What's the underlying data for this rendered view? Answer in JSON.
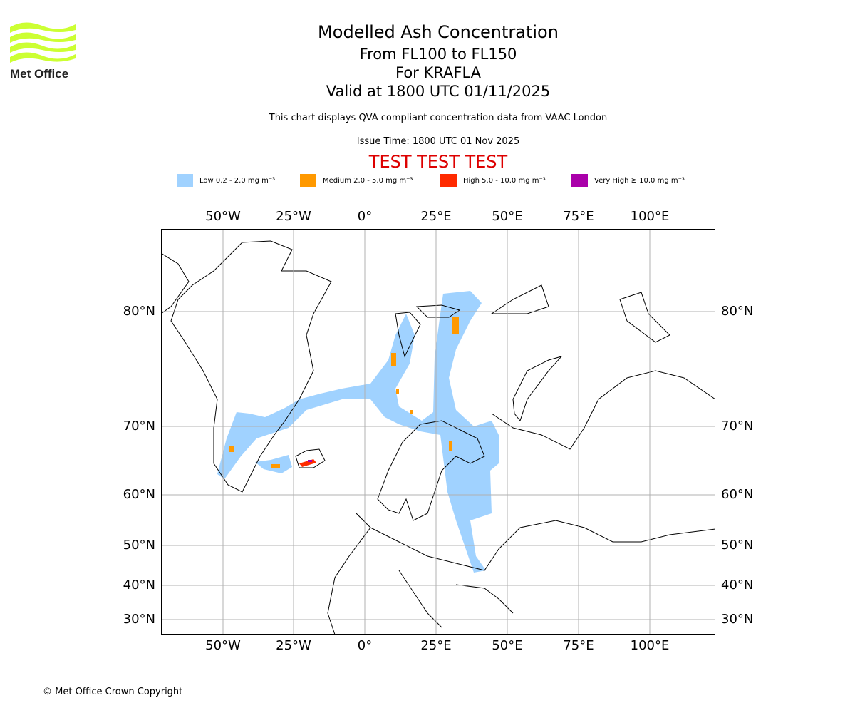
{
  "logo": {
    "text": "Met Office",
    "color": "#ccff33"
  },
  "title": "Modelled Ash Concentration",
  "subtitle_levels": "From FL100 to FL150",
  "subtitle_volcano": "For KRAFLA",
  "subtitle_valid": "Valid at 1800 UTC 01/11/2025",
  "description": "This chart displays QVA compliant concentration data from VAAC London",
  "issue_time": "Issue Time: 1800 UTC 01 Nov 2025",
  "test_banner": "TEST TEST TEST",
  "test_color": "#dd0000",
  "legend": [
    {
      "label": "Low 0.2 - 2.0 mg m⁻³",
      "color": "#a0d2ff"
    },
    {
      "label": "Medium 2.0 - 5.0 mg m⁻³",
      "color": "#ff9900"
    },
    {
      "label": "High 5.0 - 10.0 mg m⁻³",
      "color": "#ff2a00"
    },
    {
      "label": "Very High ≥ 10.0 mg m⁻³",
      "color": "#aa00aa"
    }
  ],
  "lon_ticks": [
    "50°W",
    "25°W",
    "0°",
    "25°E",
    "50°E",
    "75°E",
    "100°E"
  ],
  "lat_ticks": [
    "80°N",
    "70°N",
    "60°N",
    "50°N",
    "40°N",
    "30°N"
  ],
  "copyright": "© Met Office Crown Copyright"
}
